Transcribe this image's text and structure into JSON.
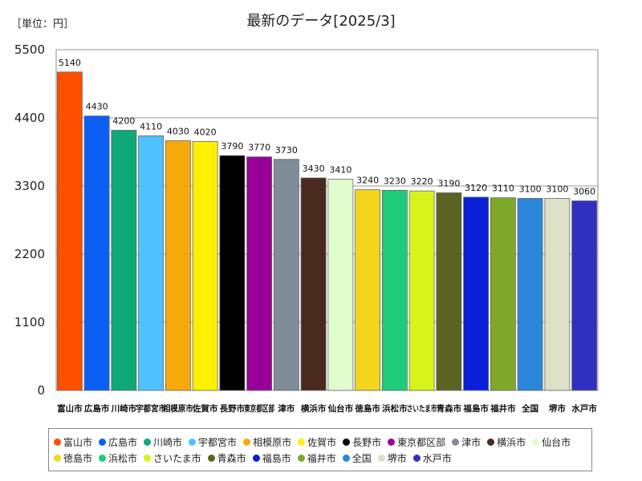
{
  "chart_data": {
    "type": "bar",
    "title": "最新のデータ[2025/3]",
    "unit_label": "［単位：円］",
    "ylim": [
      0,
      5500
    ],
    "yticks": [
      0,
      1100,
      2200,
      3300,
      4400,
      5500
    ],
    "grid": true,
    "legend_position": "bottom",
    "categories": [
      "富山市",
      "広島市",
      "川崎市",
      "宇都宮市",
      "相模原市",
      "佐賀市",
      "長野市",
      "東京都区部",
      "津市",
      "横浜市",
      "仙台市",
      "徳島市",
      "浜松市",
      "さいたま市",
      "青森市",
      "福島市",
      "福井市",
      "全国",
      "堺市",
      "水戸市"
    ],
    "values": [
      5140,
      4430,
      4200,
      4110,
      4030,
      4020,
      3790,
      3770,
      3730,
      3430,
      3410,
      3240,
      3230,
      3220,
      3190,
      3120,
      3110,
      3100,
      3100,
      3060
    ],
    "colors": [
      "#ff4f00",
      "#0b5ff5",
      "#0fa878",
      "#4fc1ff",
      "#f5a90a",
      "#ffef00",
      "#000000",
      "#990099",
      "#7f8c99",
      "#4a2a1f",
      "#dffdcd",
      "#f2d51c",
      "#1ecc7a",
      "#d8f21c",
      "#5c6322",
      "#0a20d8",
      "#7fa82a",
      "#2a86d8",
      "#dde0c4",
      "#3030c0"
    ]
  }
}
